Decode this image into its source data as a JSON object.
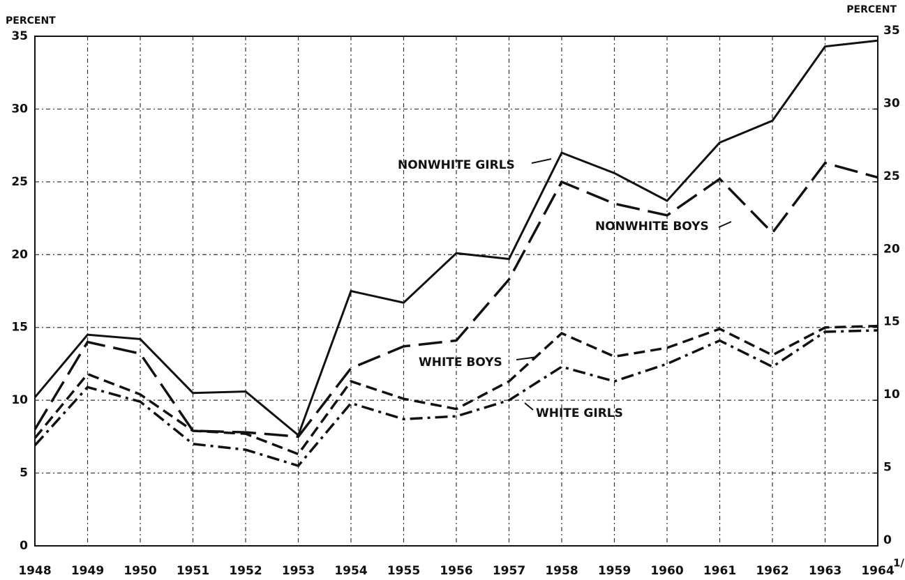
{
  "chart_data": {
    "type": "line",
    "y_label": "PERCENT",
    "y2_label": "PERCENT",
    "categories": [
      "1948",
      "1949",
      "1950",
      "1951",
      "1952",
      "1953",
      "1954",
      "1955",
      "1956",
      "1957",
      "1958",
      "1959",
      "1960",
      "1961",
      "1962",
      "1963",
      "1964"
    ],
    "footnote": "1/",
    "series": [
      {
        "name": "NONWHITE GIRLS",
        "color": "#111111",
        "dash": "solid",
        "values": [
          10.2,
          14.5,
          14.2,
          10.5,
          10.6,
          7.6,
          17.5,
          16.7,
          20.1,
          19.7,
          27.0,
          25.6,
          23.7,
          27.7,
          29.2,
          34.3,
          34.7
        ]
      },
      {
        "name": "NONWHITE BOYS",
        "color": "#111111",
        "dash": "long",
        "values": [
          8.0,
          14.0,
          13.2,
          7.9,
          7.8,
          7.5,
          12.2,
          13.7,
          14.1,
          18.3,
          25.0,
          23.5,
          22.7,
          25.2,
          21.5,
          26.3,
          25.3
        ]
      },
      {
        "name": "WHITE BOYS",
        "color": "#111111",
        "dash": "short",
        "values": [
          7.4,
          11.8,
          10.4,
          7.9,
          7.7,
          6.3,
          11.3,
          10.1,
          9.4,
          11.3,
          14.6,
          13.0,
          13.6,
          14.9,
          13.1,
          15.0,
          15.1
        ]
      },
      {
        "name": "WHITE GIRLS",
        "color": "#111111",
        "dash": "dashdot",
        "values": [
          6.9,
          10.9,
          9.9,
          7.0,
          6.6,
          5.5,
          9.8,
          8.7,
          8.9,
          10.0,
          12.3,
          11.3,
          12.5,
          14.1,
          12.3,
          14.7,
          14.8
        ]
      }
    ],
    "ylim": [
      0,
      35
    ],
    "yticks": [
      0,
      5,
      10,
      15,
      20,
      25,
      30,
      35
    ],
    "y2lim": [
      0,
      35
    ],
    "y2ticks": [
      0,
      5,
      10,
      15,
      20,
      25,
      30,
      35
    ],
    "grid": true
  }
}
